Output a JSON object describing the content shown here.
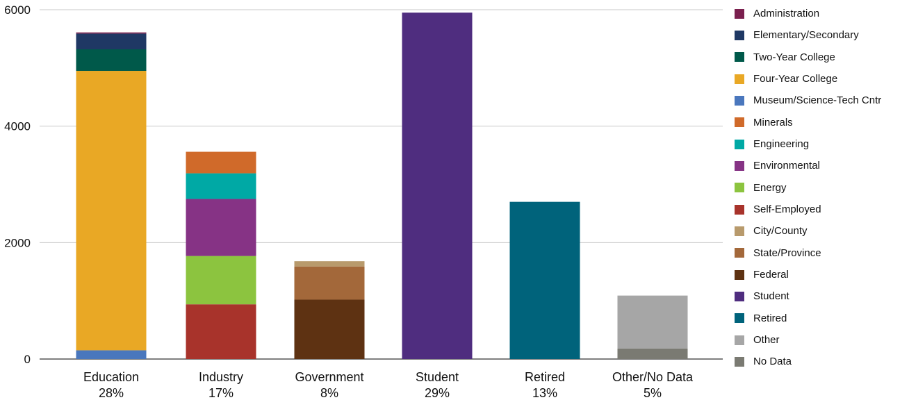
{
  "chart_data": {
    "type": "bar",
    "stacked": true,
    "title": "",
    "xlabel": "",
    "ylabel": "",
    "ylim": [
      0,
      6000
    ],
    "yticks": [
      0,
      2000,
      4000,
      6000
    ],
    "grid": true,
    "legend_position": "right",
    "categories": [
      "Education",
      "Industry",
      "Government",
      "Student",
      "Retired",
      "Other/No Data"
    ],
    "category_percents": [
      "28%",
      "17%",
      "8%",
      "29%",
      "13%",
      "5%"
    ],
    "series": [
      {
        "name": "Administration",
        "color": "#7a1f4e",
        "values": [
          20,
          0,
          0,
          0,
          0,
          0
        ]
      },
      {
        "name": "Elementary/Secondary",
        "color": "#1f3864",
        "values": [
          270,
          0,
          0,
          0,
          0,
          0
        ]
      },
      {
        "name": "Two-Year College",
        "color": "#00594a",
        "values": [
          370,
          0,
          0,
          0,
          0,
          0
        ]
      },
      {
        "name": "Four-Year College",
        "color": "#e9a825",
        "values": [
          4800,
          0,
          0,
          0,
          0,
          0
        ]
      },
      {
        "name": "Museum/Science-Tech Cntr",
        "color": "#4a77bd",
        "values": [
          150,
          0,
          0,
          0,
          0,
          0
        ]
      },
      {
        "name": "Minerals",
        "color": "#d06a2a",
        "values": [
          0,
          370,
          0,
          0,
          0,
          0
        ]
      },
      {
        "name": "Engineering",
        "color": "#00a9a5",
        "values": [
          0,
          440,
          0,
          0,
          0,
          0
        ]
      },
      {
        "name": "Environmental",
        "color": "#863385",
        "values": [
          0,
          980,
          0,
          0,
          0,
          0
        ]
      },
      {
        "name": "Energy",
        "color": "#8cc43f",
        "values": [
          0,
          830,
          0,
          0,
          0,
          0
        ]
      },
      {
        "name": "Self-Employed",
        "color": "#a8332b",
        "values": [
          0,
          940,
          0,
          0,
          0,
          0
        ]
      },
      {
        "name": "City/County",
        "color": "#b89a6c",
        "values": [
          0,
          0,
          90,
          0,
          0,
          0
        ]
      },
      {
        "name": "State/Province",
        "color": "#a3683a",
        "values": [
          0,
          0,
          570,
          0,
          0,
          0
        ]
      },
      {
        "name": "Federal",
        "color": "#5e3212",
        "values": [
          0,
          0,
          1020,
          0,
          0,
          0
        ]
      },
      {
        "name": "Student",
        "color": "#4f2d7f",
        "values": [
          0,
          0,
          0,
          5950,
          0,
          0
        ]
      },
      {
        "name": "Retired",
        "color": "#00637b",
        "values": [
          0,
          0,
          0,
          0,
          2700,
          0
        ]
      },
      {
        "name": "Other",
        "color": "#a6a6a6",
        "values": [
          0,
          0,
          0,
          0,
          0,
          910
        ]
      },
      {
        "name": "No Data",
        "color": "#7a7a72",
        "values": [
          0,
          0,
          0,
          0,
          0,
          180
        ]
      }
    ]
  }
}
